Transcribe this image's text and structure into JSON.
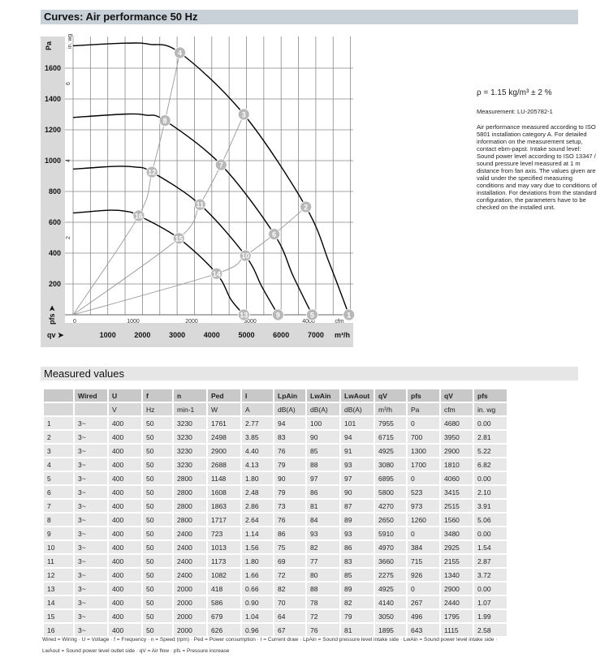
{
  "title": "Curves: Air performance 50 Hz",
  "density": "ρ = 1.15 kg/m³ ± 2 %",
  "measurement": "Measurement: LU-205782-1",
  "note": "Air performance measured according to ISO 5801 installation category A. For detailed information on the measurement setup, contact ebm-papst. Intake sound level: Sound power level according to ISO 13347 / sound pressure level measured at 1 m distance from fan axis. The values given are valid under the specified measuring conditions and may vary due to conditions of installation. For deviations from the standard configuration, the parameters have to be checked on the installed unit.",
  "chart_data": {
    "type": "line",
    "ylabel": "Pa",
    "ylabel2": "in. wg",
    "xlabel": "qv",
    "xunit": "m³/h",
    "xunit2": "cfm",
    "ylabel_bottom": "pfs",
    "xlim": [
      0,
      8000
    ],
    "ylim": [
      0,
      1800
    ],
    "x_ticks": [
      1000,
      2000,
      3000,
      4000,
      5000,
      6000,
      7000
    ],
    "y_ticks": [
      200,
      400,
      600,
      800,
      1000,
      1200,
      1400,
      1600
    ],
    "x2_ticks": [
      0,
      1000,
      2000,
      3000,
      4000
    ],
    "y2_ticks": [
      2,
      4,
      6,
      8
    ],
    "grid": true,
    "series": [
      {
        "speed": 3230,
        "points": [
          [
            0,
            1745
          ],
          [
            1500,
            1762
          ],
          [
            2200,
            1755
          ],
          [
            3080,
            1700
          ],
          [
            4925,
            1300
          ],
          [
            6715,
            700
          ],
          [
            7400,
            330
          ],
          [
            7955,
            0
          ]
        ],
        "labels": [
          4,
          3,
          2,
          1
        ]
      },
      {
        "speed": 2800,
        "points": [
          [
            0,
            1280
          ],
          [
            1500,
            1302
          ],
          [
            2100,
            1295
          ],
          [
            2650,
            1260
          ],
          [
            4270,
            973
          ],
          [
            5800,
            523
          ],
          [
            6350,
            250
          ],
          [
            6895,
            0
          ]
        ],
        "labels": [
          8,
          7,
          6,
          5
        ]
      },
      {
        "speed": 2400,
        "points": [
          [
            0,
            945
          ],
          [
            1200,
            963
          ],
          [
            1800,
            958
          ],
          [
            2275,
            926
          ],
          [
            3660,
            715
          ],
          [
            4970,
            384
          ],
          [
            5450,
            180
          ],
          [
            5910,
            0
          ]
        ],
        "labels": [
          12,
          11,
          10,
          9
        ]
      },
      {
        "speed": 2000,
        "points": [
          [
            0,
            660
          ],
          [
            1000,
            678
          ],
          [
            1500,
            672
          ],
          [
            1895,
            643
          ],
          [
            3050,
            496
          ],
          [
            4140,
            267
          ],
          [
            4550,
            100
          ],
          [
            4925,
            0
          ]
        ],
        "labels": [
          16,
          15,
          14,
          13
        ]
      }
    ],
    "system_lines": [
      [
        [
          0,
          0
        ],
        [
          1895,
          643
        ],
        [
          2275,
          926
        ],
        [
          2650,
          1260
        ],
        [
          3080,
          1700
        ]
      ],
      [
        [
          0,
          0
        ],
        [
          3050,
          496
        ],
        [
          3660,
          715
        ],
        [
          4270,
          973
        ],
        [
          4925,
          1300
        ]
      ],
      [
        [
          0,
          0
        ],
        [
          4140,
          267
        ],
        [
          4970,
          384
        ],
        [
          5800,
          523
        ],
        [
          6715,
          700
        ]
      ]
    ]
  },
  "measured": {
    "title": "Measured values",
    "header": [
      "",
      "Wired",
      "U",
      "f",
      "n",
      "Ped",
      "I",
      "LpAin",
      "LwAin",
      "LwAout",
      "qV",
      "pfs",
      "qV",
      "pfs"
    ],
    "units": [
      "",
      "",
      "V",
      "Hz",
      "min-1",
      "W",
      "A",
      "dB(A)",
      "dB(A)",
      "dB(A)",
      "m³/h",
      "Pa",
      "cfm",
      "in. wg"
    ],
    "rows": [
      [
        "1",
        "3~",
        "400",
        "50",
        "3230",
        "1761",
        "2.77",
        "94",
        "100",
        "101",
        "7955",
        "0",
        "4680",
        "0.00"
      ],
      [
        "2",
        "3~",
        "400",
        "50",
        "3230",
        "2498",
        "3.85",
        "83",
        "90",
        "94",
        "6715",
        "700",
        "3950",
        "2.81"
      ],
      [
        "3",
        "3~",
        "400",
        "50",
        "3230",
        "2900",
        "4.40",
        "76",
        "85",
        "91",
        "4925",
        "1300",
        "2900",
        "5.22"
      ],
      [
        "4",
        "3~",
        "400",
        "50",
        "3230",
        "2688",
        "4.13",
        "79",
        "88",
        "93",
        "3080",
        "1700",
        "1810",
        "6.82"
      ],
      [
        "5",
        "3~",
        "400",
        "50",
        "2800",
        "1148",
        "1.80",
        "90",
        "97",
        "97",
        "6895",
        "0",
        "4060",
        "0.00"
      ],
      [
        "6",
        "3~",
        "400",
        "50",
        "2800",
        "1608",
        "2.48",
        "79",
        "86",
        "90",
        "5800",
        "523",
        "3415",
        "2.10"
      ],
      [
        "7",
        "3~",
        "400",
        "50",
        "2800",
        "1863",
        "2.86",
        "73",
        "81",
        "87",
        "4270",
        "973",
        "2515",
        "3.91"
      ],
      [
        "8",
        "3~",
        "400",
        "50",
        "2800",
        "1717",
        "2.64",
        "76",
        "84",
        "89",
        "2650",
        "1260",
        "1560",
        "5.06"
      ],
      [
        "9",
        "3~",
        "400",
        "50",
        "2400",
        "723",
        "1.14",
        "86",
        "93",
        "93",
        "5910",
        "0",
        "3480",
        "0.00"
      ],
      [
        "10",
        "3~",
        "400",
        "50",
        "2400",
        "1013",
        "1.56",
        "75",
        "82",
        "86",
        "4970",
        "384",
        "2925",
        "1.54"
      ],
      [
        "11",
        "3~",
        "400",
        "50",
        "2400",
        "1173",
        "1.80",
        "69",
        "77",
        "83",
        "3660",
        "715",
        "2155",
        "2.87"
      ],
      [
        "12",
        "3~",
        "400",
        "50",
        "2400",
        "1082",
        "1.66",
        "72",
        "80",
        "85",
        "2275",
        "926",
        "1340",
        "3.72"
      ],
      [
        "13",
        "3~",
        "400",
        "50",
        "2000",
        "418",
        "0.66",
        "82",
        "88",
        "89",
        "4925",
        "0",
        "2900",
        "0.00"
      ],
      [
        "14",
        "3~",
        "400",
        "50",
        "2000",
        "586",
        "0.90",
        "70",
        "78",
        "82",
        "4140",
        "267",
        "2440",
        "1.07"
      ],
      [
        "15",
        "3~",
        "400",
        "50",
        "2000",
        "679",
        "1.04",
        "64",
        "72",
        "79",
        "3050",
        "496",
        "1795",
        "1.99"
      ],
      [
        "16",
        "3~",
        "400",
        "50",
        "2000",
        "626",
        "0.96",
        "67",
        "76",
        "81",
        "1895",
        "643",
        "1115",
        "2.58"
      ]
    ],
    "legend1": "Wired = Wiring · U = Voltage · f = Frequency · n = Speed (rpm) · Ped = Power consumption · I = Current draw · LpAin = Sound pressure level intake side · LwAin = Sound power level intake side ·",
    "legend2": "LwAout = Sound power level outlet side · qV = Air flow · pfs = Pressure increase"
  }
}
